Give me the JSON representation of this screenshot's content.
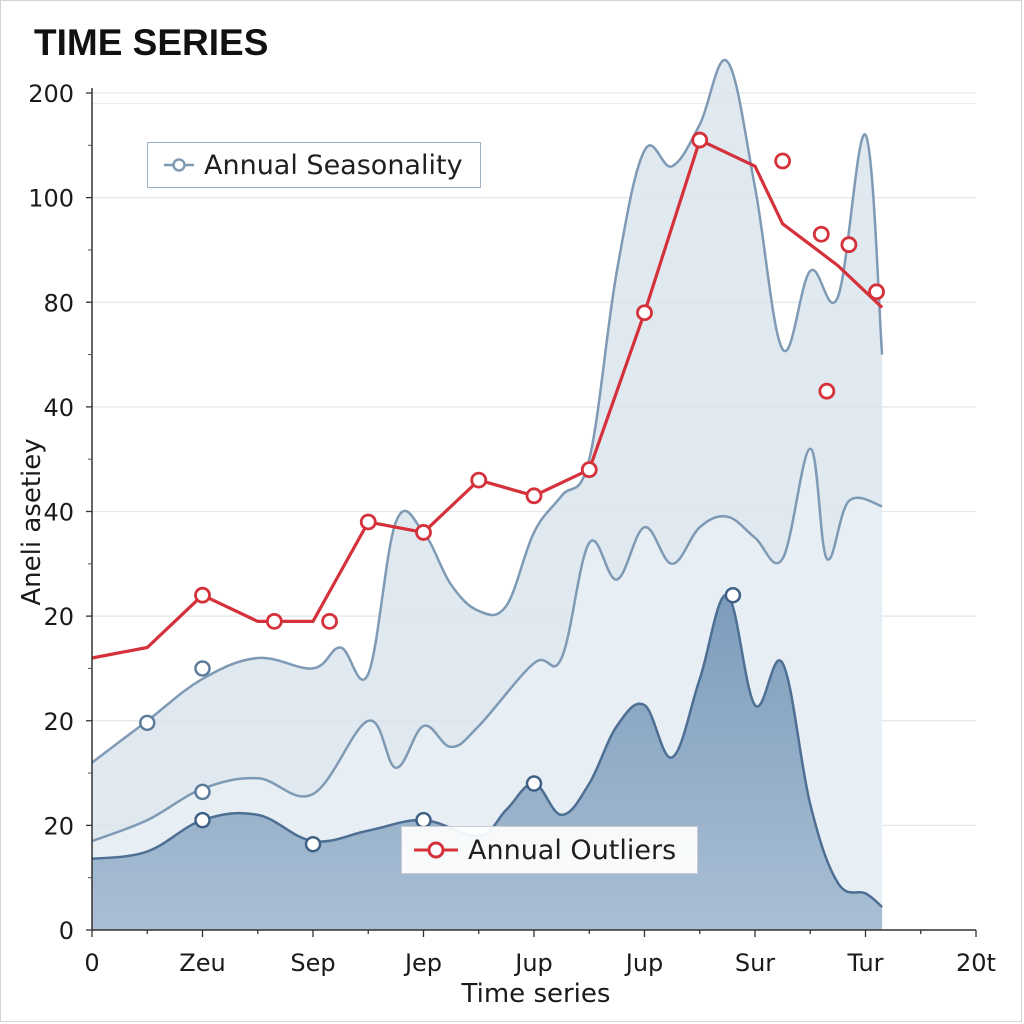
{
  "title": "TIME SERIES",
  "chart_data": {
    "type": "area",
    "title": "TIME SERIES",
    "xlabel": "Time series",
    "ylabel": "Aneli asetiey",
    "x_tick_labels": [
      "0",
      "Zeu",
      "Sep",
      "Jep",
      "Jup",
      "Jup",
      "Sur",
      "Tur",
      "20t"
    ],
    "y_tick_labels": [
      "0",
      "20",
      "20",
      "20",
      "40",
      "40",
      "80",
      "100",
      "200"
    ],
    "xlim": [
      0,
      16
    ],
    "ylim": [
      0,
      8
    ],
    "grid": true,
    "legend": [
      {
        "label": "Annual Seasonality",
        "placement": "top-left",
        "color": "#7f9ab4"
      },
      {
        "label": "Annual Outliers",
        "placement": "bottom-center",
        "color": "#d4313a"
      }
    ],
    "series": [
      {
        "name": "Annual Seasonality",
        "kind": "band-upper",
        "color": "#7f9ab4",
        "points": [
          [
            0,
            1.6
          ],
          [
            1,
            2.0
          ],
          [
            2,
            2.4
          ],
          [
            3,
            2.6
          ],
          [
            4,
            2.5
          ],
          [
            4.5,
            2.7
          ],
          [
            5,
            2.45
          ],
          [
            5.5,
            3.9
          ],
          [
            6,
            3.8
          ],
          [
            6.5,
            3.3
          ],
          [
            7,
            3.05
          ],
          [
            7.5,
            3.1
          ],
          [
            8,
            3.8
          ],
          [
            8.5,
            4.15
          ],
          [
            9,
            4.5
          ],
          [
            9.5,
            6.3
          ],
          [
            10,
            7.45
          ],
          [
            10.5,
            7.3
          ],
          [
            11,
            7.7
          ],
          [
            11.5,
            8.3
          ],
          [
            12,
            7.1
          ],
          [
            12.5,
            5.55
          ],
          [
            13,
            6.3
          ],
          [
            13.5,
            6.05
          ],
          [
            14,
            7.6
          ],
          [
            14.3,
            5.5
          ]
        ],
        "markers": [
          [
            1,
            1.98
          ],
          [
            2,
            2.5
          ]
        ]
      },
      {
        "name": "",
        "kind": "band-lower",
        "color": "#7f9ab4",
        "points": [
          [
            0,
            0.85
          ],
          [
            1,
            1.05
          ],
          [
            2,
            1.35
          ],
          [
            3,
            1.45
          ],
          [
            4,
            1.3
          ],
          [
            5,
            2.0
          ],
          [
            5.5,
            1.55
          ],
          [
            6,
            1.95
          ],
          [
            6.5,
            1.75
          ],
          [
            7,
            1.95
          ],
          [
            8,
            2.55
          ],
          [
            8.5,
            2.6
          ],
          [
            9,
            3.7
          ],
          [
            9.5,
            3.35
          ],
          [
            10,
            3.85
          ],
          [
            10.5,
            3.5
          ],
          [
            11,
            3.85
          ],
          [
            11.5,
            3.95
          ],
          [
            12,
            3.75
          ],
          [
            12.5,
            3.55
          ],
          [
            13,
            4.6
          ],
          [
            13.3,
            3.55
          ],
          [
            13.7,
            4.1
          ],
          [
            14.3,
            4.05
          ]
        ],
        "markers": [
          [
            2,
            1.32
          ]
        ]
      },
      {
        "name": "",
        "kind": "filled-area",
        "color": "#6e90b2",
        "points": [
          [
            0,
            0.68
          ],
          [
            1,
            0.75
          ],
          [
            2,
            1.05
          ],
          [
            3,
            1.1
          ],
          [
            4,
            0.85
          ],
          [
            5,
            0.95
          ],
          [
            6,
            1.05
          ],
          [
            7,
            0.9
          ],
          [
            7.5,
            1.15
          ],
          [
            8,
            1.4
          ],
          [
            8.5,
            1.1
          ],
          [
            9,
            1.4
          ],
          [
            9.5,
            1.95
          ],
          [
            10,
            2.15
          ],
          [
            10.5,
            1.65
          ],
          [
            11,
            2.4
          ],
          [
            11.5,
            3.2
          ],
          [
            12,
            2.15
          ],
          [
            12.5,
            2.55
          ],
          [
            13,
            1.2
          ],
          [
            13.5,
            0.45
          ],
          [
            14,
            0.35
          ],
          [
            14.3,
            0.22
          ]
        ],
        "markers": [
          [
            2,
            1.05
          ],
          [
            4,
            0.82
          ],
          [
            6,
            1.05
          ],
          [
            8,
            1.4
          ],
          [
            11.6,
            3.2
          ]
        ]
      },
      {
        "name": "Annual Outliers",
        "kind": "line",
        "color": "#d4313a",
        "points": [
          [
            0,
            2.6
          ],
          [
            1,
            2.7
          ],
          [
            2,
            3.2
          ],
          [
            3,
            2.95
          ],
          [
            4,
            2.95
          ],
          [
            5,
            3.9
          ],
          [
            6,
            3.8
          ],
          [
            7,
            4.3
          ],
          [
            8,
            4.15
          ],
          [
            9,
            4.4
          ],
          [
            10,
            5.9
          ],
          [
            11,
            7.55
          ],
          [
            12,
            7.3
          ],
          [
            12.5,
            6.75
          ],
          [
            13,
            6.55
          ],
          [
            13.5,
            6.35
          ],
          [
            14,
            6.1
          ],
          [
            14.3,
            5.95
          ]
        ],
        "markers": [
          [
            2,
            3.2
          ],
          [
            3.3,
            2.95
          ],
          [
            4.3,
            2.95
          ],
          [
            5,
            3.9
          ],
          [
            6,
            3.8
          ],
          [
            7,
            4.3
          ],
          [
            8,
            4.15
          ],
          [
            9,
            4.4
          ],
          [
            10,
            5.9
          ],
          [
            11,
            7.55
          ],
          [
            12.5,
            7.35
          ],
          [
            13.2,
            6.65
          ],
          [
            13.7,
            6.55
          ],
          [
            14.2,
            6.1
          ],
          [
            13.3,
            5.15
          ]
        ]
      }
    ]
  }
}
